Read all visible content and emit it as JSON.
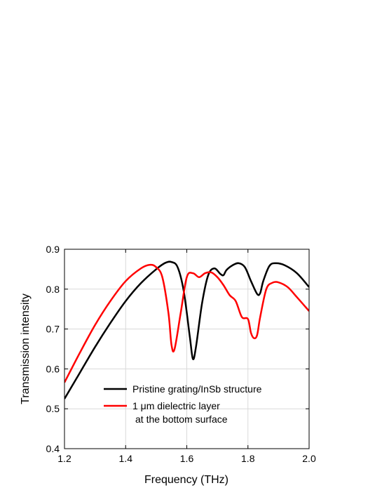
{
  "chart_data": {
    "type": "line",
    "xlabel": "Frequency (THz)",
    "ylabel": "Transmission intensity",
    "xlim": [
      1.2,
      2.0
    ],
    "ylim": [
      0.4,
      0.9
    ],
    "xticks": [
      1.2,
      1.4,
      1.6,
      1.8,
      2.0
    ],
    "xtick_labels": [
      "1.2",
      "1.4",
      "1.6",
      "1.8",
      "2.0"
    ],
    "yticks": [
      0.4,
      0.5,
      0.6,
      0.7,
      0.8,
      0.9
    ],
    "ytick_labels": [
      "0.4",
      "0.5",
      "0.6",
      "0.7",
      "0.8",
      "0.9"
    ],
    "grid": true,
    "legend_placement": "bottom-center",
    "series": [
      {
        "name": "Pristine grating/InSb structure",
        "color": "#000000",
        "x": [
          1.2,
          1.25,
          1.3,
          1.35,
          1.4,
          1.45,
          1.5,
          1.53,
          1.55,
          1.57,
          1.59,
          1.61,
          1.62,
          1.63,
          1.65,
          1.67,
          1.69,
          1.71,
          1.72,
          1.73,
          1.75,
          1.77,
          1.79,
          1.81,
          1.83,
          1.84,
          1.85,
          1.87,
          1.89,
          1.92,
          1.96,
          2.0
        ],
        "y": [
          0.525,
          0.59,
          0.655,
          0.715,
          0.77,
          0.815,
          0.85,
          0.866,
          0.868,
          0.855,
          0.795,
          0.68,
          0.625,
          0.655,
          0.765,
          0.835,
          0.852,
          0.838,
          0.835,
          0.848,
          0.86,
          0.865,
          0.855,
          0.82,
          0.788,
          0.79,
          0.82,
          0.858,
          0.865,
          0.86,
          0.84,
          0.805
        ]
      },
      {
        "name": "1 μm dielectric layer",
        "color": "#ff0000",
        "x": [
          1.2,
          1.25,
          1.3,
          1.35,
          1.4,
          1.45,
          1.48,
          1.5,
          1.52,
          1.54,
          1.55,
          1.56,
          1.58,
          1.6,
          1.62,
          1.64,
          1.66,
          1.68,
          1.7,
          1.72,
          1.74,
          1.76,
          1.78,
          1.8,
          1.81,
          1.82,
          1.83,
          1.84,
          1.86,
          1.88,
          1.9,
          1.93,
          1.96,
          2.0
        ],
        "y": [
          0.566,
          0.64,
          0.71,
          0.77,
          0.82,
          0.852,
          0.861,
          0.855,
          0.83,
          0.74,
          0.66,
          0.65,
          0.74,
          0.83,
          0.84,
          0.83,
          0.84,
          0.842,
          0.83,
          0.81,
          0.785,
          0.77,
          0.73,
          0.725,
          0.69,
          0.677,
          0.685,
          0.73,
          0.8,
          0.816,
          0.817,
          0.805,
          0.78,
          0.745
        ]
      }
    ],
    "legend": [
      {
        "lines": [
          "Pristine grating/InSb structure"
        ]
      },
      {
        "lines": [
          "1 μm dielectric layer",
          "at the bottom surface"
        ]
      }
    ]
  }
}
